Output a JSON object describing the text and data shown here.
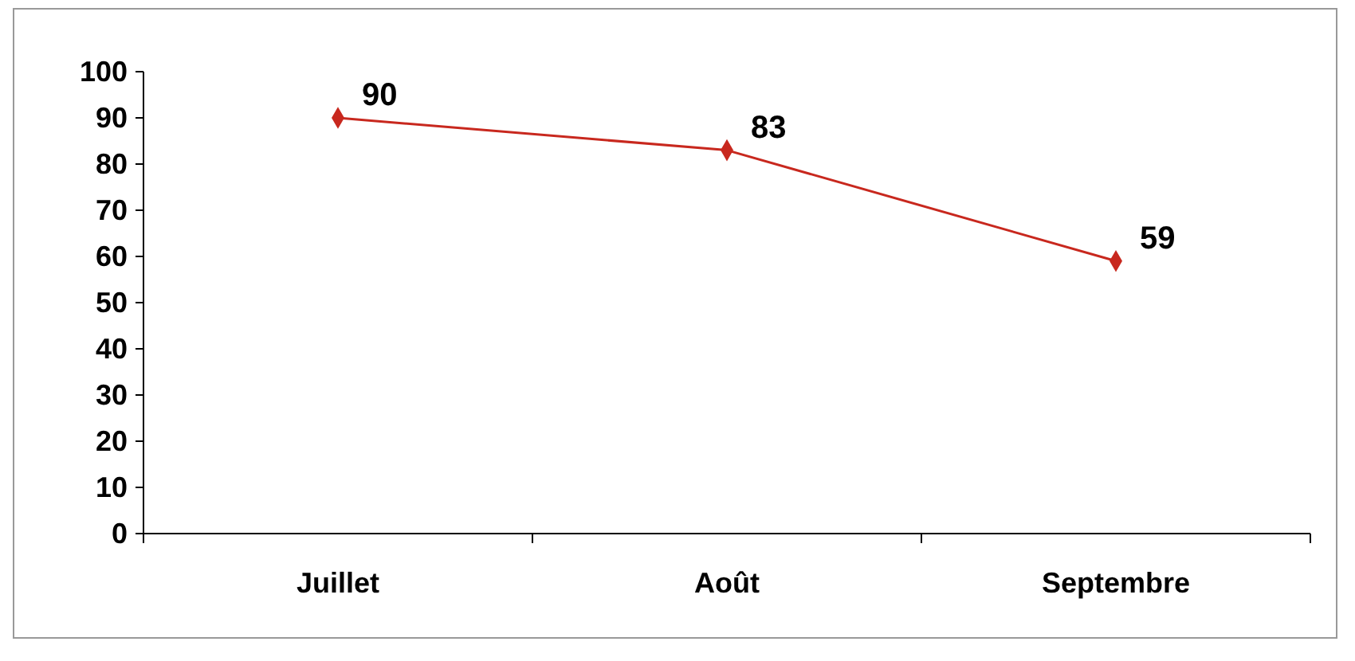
{
  "chart_data": {
    "type": "line",
    "categories": [
      "Juillet",
      "Août",
      "Septembre"
    ],
    "series": [
      {
        "color": "#c8281e",
        "values": [
          90,
          83,
          59
        ]
      }
    ],
    "ylim": [
      0,
      100
    ],
    "yticks": [
      0,
      10,
      20,
      30,
      40,
      50,
      60,
      70,
      80,
      90,
      100
    ],
    "marker": "diamond",
    "data_labels": true,
    "grid": false
  }
}
